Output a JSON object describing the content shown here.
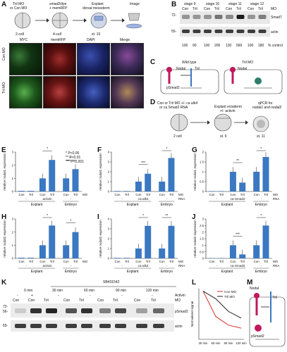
{
  "panels": {
    "A": "A",
    "B": "B",
    "C": "C",
    "D": "D",
    "E": "E",
    "F": "F",
    "G": "G",
    "H": "H",
    "I": "I",
    "J": "J",
    "K": "K",
    "L": "L",
    "M": "M"
  },
  "panel_a": {
    "inject1": "Tril MO",
    "inject1b": "or Con MO",
    "inject2": "smad2/dye",
    "inject2b": "+ memRFP",
    "step3": "Explant",
    "step3b": "dorsal mesoderm",
    "step4": "Image",
    "stage1": "2-cell",
    "stage2": "4-cell",
    "stage3": "st. 10",
    "cols": [
      "MYC",
      "memRFP",
      "DAPI",
      "Merge"
    ],
    "rows": [
      "Con MO",
      "Tril MO"
    ]
  },
  "panel_b": {
    "stages": [
      "stage 9",
      "stage 10",
      "stage 11",
      "stage 12"
    ],
    "lanes": [
      "Con",
      "Tril",
      "Con",
      "Tril",
      "Con",
      "Tril",
      "Con",
      "Tril"
    ],
    "mo_label": "MO",
    "markers": [
      "72-",
      "55-"
    ],
    "bands": [
      "Smad7",
      "actin"
    ],
    "percents": [
      "100",
      "90",
      "100",
      "200",
      "130",
      "560",
      "100",
      "180"
    ],
    "pct_label": "% control"
  },
  "panel_c": {
    "left": "Wild type",
    "right": "Tril MO",
    "b1": "Nodal",
    "b2": "Tril",
    "b3": "Nodal",
    "b4": "pSmad2"
  },
  "panel_d": {
    "line1": "Con or Tril MO +/- ca alk4",
    "line2": "or ca Smad2 RNA",
    "mid1": "Explant ectoderm",
    "mid2": "+/- activin",
    "right1": "qPCR for",
    "right2": "nodal1 and nodal2",
    "s1": "2 cell",
    "s2": "st. 9",
    "s3": "st. 11"
  },
  "legend_sig": [
    "* P<0.05",
    "** P<0.01",
    "*** P<0.001"
  ],
  "ylabels": {
    "nodal1": "relative nodal1 expression",
    "nodal2": "relative nodal2 expression"
  },
  "common": {
    "con": "Con",
    "tril": "Tril",
    "mo": "MO",
    "rna": "RNA",
    "explant": "Explant",
    "embryo": "Embryo",
    "minus": "-"
  },
  "treatments": {
    "E": "activin",
    "F": "ca-alk4",
    "G": "ca-Smad2",
    "H": "activin",
    "I": "ca-alk4",
    "J": "ca-Smad2"
  },
  "chart_data": [
    {
      "type": "bar",
      "panel": "E",
      "ylabel": "relative nodal1 expression",
      "ylim": [
        0,
        3
      ],
      "yticks": [
        0,
        1,
        2,
        3
      ],
      "categories": [
        "Explant - Con",
        "Explant - Tril",
        "Explant activin Con",
        "Explant activin Tril",
        "Embryo Con",
        "Embryo Tril"
      ],
      "values": [
        0.05,
        0.05,
        1.0,
        2.4,
        1.0,
        1.7
      ],
      "significance": [
        "*",
        "*"
      ]
    },
    {
      "type": "bar",
      "panel": "F",
      "ylabel": "relative nodal1 expression",
      "ylim": [
        0,
        4
      ],
      "yticks": [
        0,
        1,
        2,
        3,
        4
      ],
      "categories": [
        "Explant - Con",
        "Explant - Tril",
        "Explant ca-alk4 Con",
        "Explant ca-alk4 Tril",
        "Embryo Con",
        "Embryo Tril"
      ],
      "values": [
        0.05,
        0.05,
        1.0,
        1.8,
        1.0,
        3.4
      ],
      "significance": [
        "***",
        "*"
      ]
    },
    {
      "type": "bar",
      "panel": "G",
      "ylabel": "relative nodal1 expression",
      "ylim": [
        0,
        2
      ],
      "yticks": [
        0,
        0.5,
        1,
        1.5,
        2
      ],
      "categories": [
        "Explant - Con",
        "Explant - Tril",
        "Explant ca-Smad2 Con",
        "Explant ca-Smad2 Tril",
        "Embryo Con",
        "Embryo Tril"
      ],
      "values": [
        0.02,
        0.02,
        1.0,
        0.45,
        1.0,
        1.75
      ],
      "significance": [
        "**",
        "*"
      ]
    },
    {
      "type": "bar",
      "panel": "H",
      "ylabel": "relative nodal2 expression",
      "ylim": [
        0,
        3
      ],
      "yticks": [
        0,
        1,
        2,
        3
      ],
      "categories": [
        "Explant - Con",
        "Explant - Tril",
        "Explant activin Con",
        "Explant activin Tril",
        "Embryo Con",
        "Embryo Tril"
      ],
      "values": [
        0.05,
        0.05,
        1.0,
        2.5,
        1.0,
        2.0
      ],
      "significance": [
        "*",
        "*"
      ]
    },
    {
      "type": "bar",
      "panel": "I",
      "ylabel": "relative nodal2 expression",
      "ylim": [
        0,
        4
      ],
      "yticks": [
        0,
        1,
        2,
        3,
        4
      ],
      "categories": [
        "Explant - Con",
        "Explant - Tril",
        "Explant ca-alk4 Con",
        "Explant ca-alk4 Tril",
        "Embryo Con",
        "Embryo Tril"
      ],
      "values": [
        0.05,
        0.05,
        1.0,
        3.3,
        1.0,
        3.3
      ],
      "significance": [
        "*",
        "**"
      ]
    },
    {
      "type": "bar",
      "panel": "J",
      "ylabel": "relative nodal2 expression",
      "ylim": [
        0,
        3
      ],
      "yticks": [
        0,
        0.5,
        1,
        1.5,
        2,
        2.5,
        3
      ],
      "categories": [
        "Explant - Con",
        "Explant - Tril",
        "Explant ca-Smad2 Con",
        "Explant ca-Smad2 Tril",
        "Embryo Con",
        "Embryo Tril"
      ],
      "values": [
        0.02,
        0.02,
        1.0,
        0.3,
        1.0,
        2.5
      ],
      "significance": [
        "***",
        "*"
      ]
    },
    {
      "type": "line",
      "panel": "L",
      "ylabel": "Normalized signal",
      "x": [
        "30 min",
        "60 min",
        "90 min",
        "120 min"
      ],
      "ylim": [
        0,
        1
      ],
      "legend_position": "top-right",
      "series": [
        {
          "name": "Con MO",
          "color": "#d9332b",
          "values": [
            0.95,
            0.45,
            0.28,
            0.22
          ]
        },
        {
          "name": "Tril MO",
          "color": "#222222",
          "values": [
            0.95,
            0.8,
            0.55,
            0.42
          ]
        }
      ]
    }
  ],
  "panel_k": {
    "title": "SB431542",
    "times": [
      "0 min",
      "30 min",
      "60 min",
      "90 min",
      "120 min"
    ],
    "activin": [
      "-",
      "+",
      "-",
      "-",
      "-",
      "-"
    ],
    "activin_label": "Activin",
    "mo_row": [
      "Con",
      "Con",
      "Tril",
      "Con",
      "Tril",
      "Con",
      "Tril",
      "Con",
      "Tril"
    ],
    "mo_label": "MO",
    "markers": [
      "72-",
      "56-",
      "55-"
    ],
    "bands": [
      "pSmad2",
      "actin"
    ]
  },
  "panel_m": {
    "b1": "Nodal",
    "b2": "Tril",
    "b3": "pSmad2"
  },
  "colors": {
    "bar_blue": "#3a78c2",
    "con_red": "#d9332b",
    "tril_black": "#222222"
  }
}
